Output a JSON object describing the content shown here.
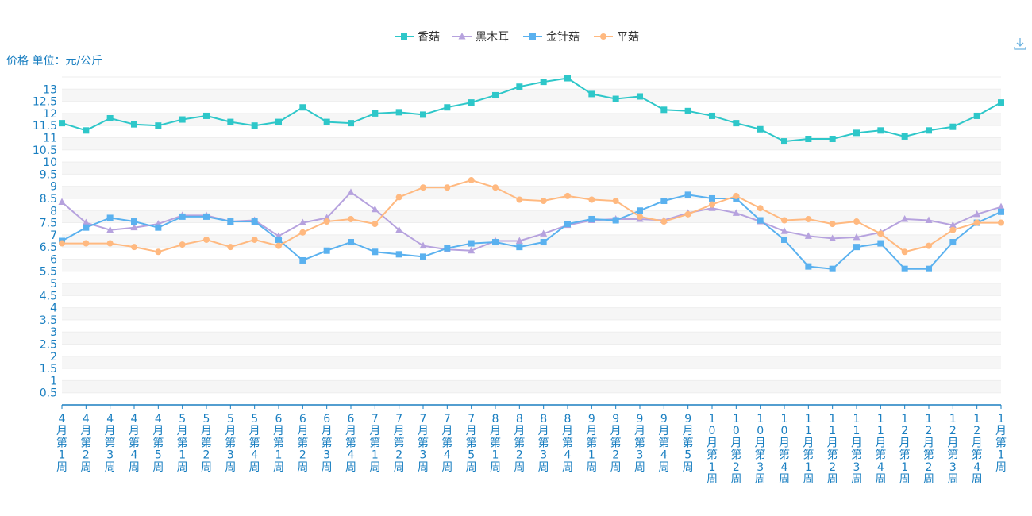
{
  "chart_data": {
    "type": "line",
    "ylabel": "价格 单位：元/公斤",
    "ylim": [
      0,
      13.5
    ],
    "yticks": [
      0.5,
      1,
      1.5,
      2,
      2.5,
      3,
      3.5,
      4,
      4.5,
      5,
      5.5,
      6,
      6.5,
      7,
      7.5,
      8,
      8.5,
      9,
      9.5,
      10,
      10.5,
      11,
      11.5,
      12,
      12.5,
      13
    ],
    "grid": true,
    "legend_position": "top-center",
    "categories": [
      "4月第1周",
      "4月第2周",
      "4月第3周",
      "4月第4周",
      "4月第5周",
      "5月第1周",
      "5月第2周",
      "5月第3周",
      "5月第4周",
      "6月第1周",
      "6月第2周",
      "6月第3周",
      "6月第4周",
      "7月第1周",
      "7月第2周",
      "7月第3周",
      "7月第4周",
      "7月第5周",
      "8月第1周",
      "8月第2周",
      "8月第3周",
      "8月第4周",
      "9月第1周",
      "9月第2周",
      "9月第3周",
      "9月第4周",
      "9月第5周",
      "10月第1周",
      "10月第2周",
      "10月第3周",
      "10月第4周",
      "11月第1周",
      "11月第2周",
      "11月第3周",
      "11月第4周",
      "12月第1周",
      "12月第2周",
      "12月第3周",
      "12月第4周",
      "1月第1周"
    ],
    "series": [
      {
        "name": "香菇",
        "color": "#2ec7c9",
        "marker": "square",
        "values": [
          11.6,
          11.3,
          11.8,
          11.55,
          11.5,
          11.75,
          11.9,
          11.65,
          11.5,
          11.65,
          12.25,
          11.65,
          11.6,
          12.0,
          12.05,
          11.95,
          12.25,
          12.45,
          12.75,
          13.1,
          13.3,
          13.45,
          12.8,
          12.6,
          12.7,
          12.15,
          12.1,
          11.9,
          11.6,
          11.35,
          10.85,
          10.95,
          10.95,
          11.2,
          11.3,
          11.05,
          11.3,
          11.45,
          11.9,
          12.45
        ]
      },
      {
        "name": "黑木耳",
        "color": "#b6a2de",
        "marker": "triangle",
        "values": [
          8.35,
          7.5,
          7.2,
          7.3,
          7.45,
          7.8,
          7.8,
          7.55,
          7.6,
          6.95,
          7.5,
          7.7,
          8.75,
          8.05,
          7.2,
          6.55,
          6.4,
          6.35,
          6.75,
          6.75,
          7.05,
          7.4,
          7.6,
          7.65,
          7.65,
          7.6,
          7.9,
          8.1,
          7.9,
          7.55,
          7.15,
          6.95,
          6.85,
          6.9,
          7.1,
          7.65,
          7.6,
          7.4,
          7.85,
          8.15
        ]
      },
      {
        "name": "金针菇",
        "color": "#5ab1ef",
        "marker": "square",
        "values": [
          6.75,
          7.3,
          7.7,
          7.55,
          7.3,
          7.75,
          7.75,
          7.55,
          7.55,
          6.8,
          5.95,
          6.35,
          6.7,
          6.3,
          6.2,
          6.1,
          6.45,
          6.65,
          6.7,
          6.5,
          6.7,
          7.45,
          7.65,
          7.6,
          8.0,
          8.4,
          8.65,
          8.5,
          8.5,
          7.6,
          6.8,
          5.7,
          5.6,
          6.5,
          6.65,
          5.6,
          5.6,
          6.7,
          7.5,
          7.95
        ]
      },
      {
        "name": "平菇",
        "color": "#ffb980",
        "marker": "circle",
        "values": [
          6.65,
          6.65,
          6.65,
          6.5,
          6.3,
          6.6,
          6.8,
          6.5,
          6.8,
          6.55,
          7.1,
          7.55,
          7.65,
          7.45,
          8.55,
          8.95,
          8.95,
          9.25,
          8.95,
          8.45,
          8.4,
          8.6,
          8.45,
          8.4,
          7.75,
          7.55,
          7.85,
          8.25,
          8.6,
          8.1,
          7.6,
          7.65,
          7.45,
          7.55,
          7.05,
          6.3,
          6.55,
          7.2,
          7.5,
          7.5
        ]
      }
    ]
  }
}
